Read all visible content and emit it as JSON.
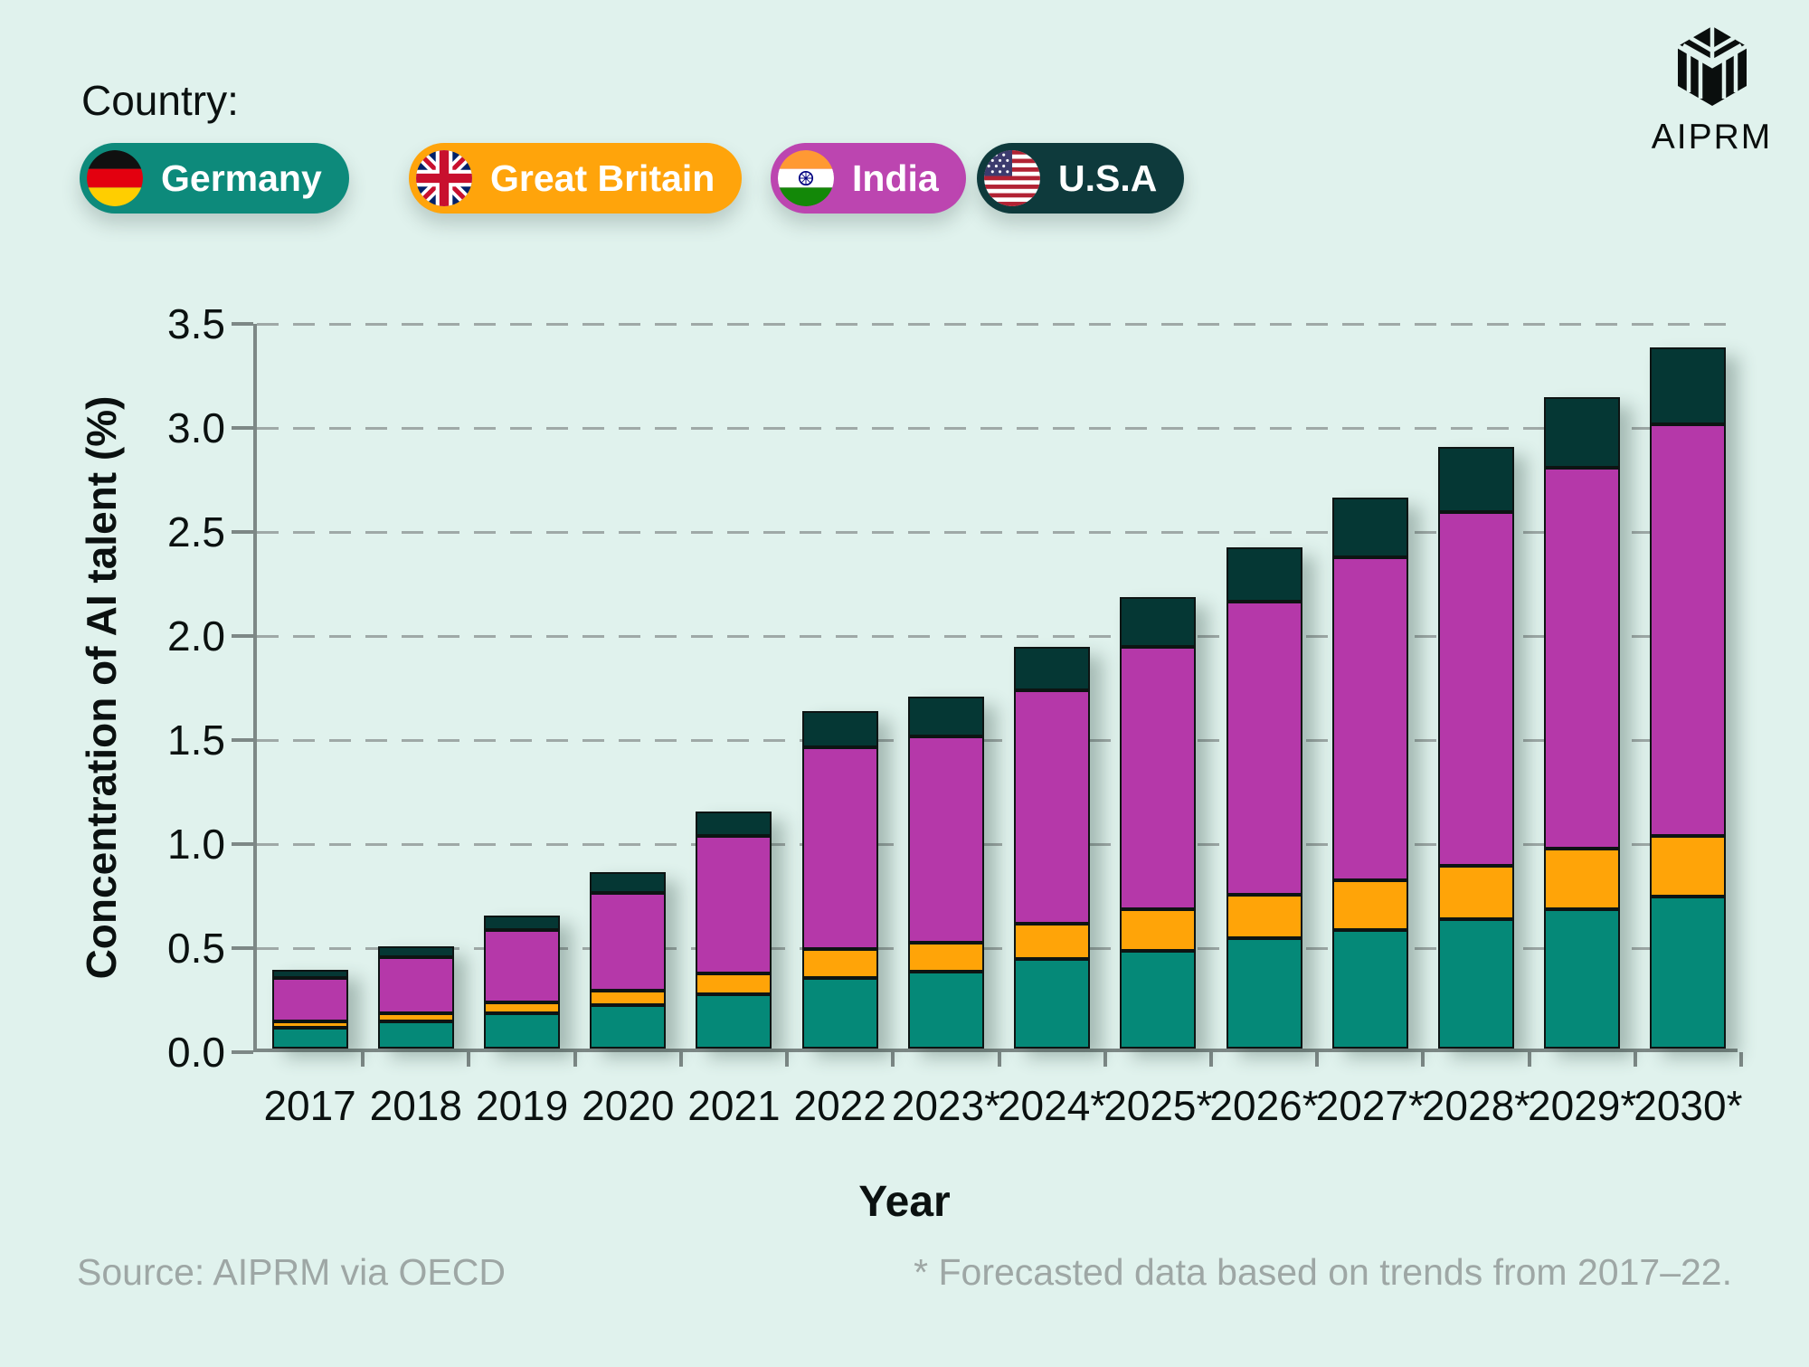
{
  "legend": {
    "title": "Country:",
    "items": [
      {
        "label": "Germany",
        "color": "#0D8A7B",
        "flag": "germany-flag-icon"
      },
      {
        "label": "Great Britain",
        "color": "#FFA40B",
        "flag": "great-britain-flag-icon"
      },
      {
        "label": "India",
        "color": "#BC45B0",
        "flag": "india-flag-icon"
      },
      {
        "label": "U.S.A",
        "color": "#0E3A3C",
        "flag": "usa-flag-icon"
      }
    ]
  },
  "logo": {
    "text": "AIPRM",
    "icon": "aiprm-logo-mark-icon"
  },
  "chart_data": {
    "type": "bar",
    "stacked": true,
    "categories": [
      "2017",
      "2018",
      "2019",
      "2020",
      "2021",
      "2022",
      "2023*",
      "2024*",
      "2025*",
      "2026*",
      "2027*",
      "2028*",
      "2029*",
      "2030*"
    ],
    "series": [
      {
        "name": "Germany",
        "color": "#058978",
        "values": [
          0.1,
          0.13,
          0.17,
          0.21,
          0.26,
          0.34,
          0.37,
          0.43,
          0.47,
          0.53,
          0.57,
          0.62,
          0.67,
          0.73
        ]
      },
      {
        "name": "Great Britain",
        "color": "#FFA408",
        "values": [
          0.03,
          0.04,
          0.05,
          0.07,
          0.1,
          0.14,
          0.14,
          0.17,
          0.2,
          0.21,
          0.24,
          0.26,
          0.29,
          0.29
        ]
      },
      {
        "name": "India",
        "color": "#B538A9",
        "values": [
          0.21,
          0.27,
          0.35,
          0.47,
          0.66,
          0.97,
          0.99,
          1.12,
          1.26,
          1.41,
          1.55,
          1.7,
          1.83,
          1.98
        ]
      },
      {
        "name": "U.S.A",
        "color": "#053734",
        "values": [
          0.04,
          0.05,
          0.07,
          0.1,
          0.12,
          0.17,
          0.19,
          0.21,
          0.24,
          0.26,
          0.29,
          0.31,
          0.34,
          0.37
        ]
      }
    ],
    "totals": [
      0.38,
      0.49,
      0.64,
      0.85,
      1.14,
      1.62,
      1.69,
      1.93,
      2.17,
      2.41,
      2.65,
      2.89,
      3.13,
      3.37
    ],
    "xlabel": "Year",
    "ylabel": "Concentration of AI talent (%)",
    "ylim": [
      0,
      3.5
    ],
    "ytick_step": 0.5,
    "grid": "horizontal-dashed",
    "legend_position": "top-left"
  },
  "footer": {
    "source": "Source: AIPRM via OECD",
    "note": "* Forecasted data based on trends from 2017–22."
  }
}
